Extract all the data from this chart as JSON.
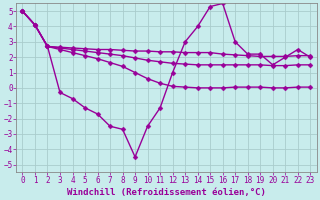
{
  "xlabel": "Windchill (Refroidissement éolien,°C)",
  "background_color": "#c8ecec",
  "line_color": "#990099",
  "grid_color": "#aacccc",
  "xlim": [
    -0.5,
    23.5
  ],
  "ylim": [
    -5.5,
    5.5
  ],
  "xticks": [
    0,
    1,
    2,
    3,
    4,
    5,
    6,
    7,
    8,
    9,
    10,
    11,
    12,
    13,
    14,
    15,
    16,
    17,
    18,
    19,
    20,
    21,
    22,
    23
  ],
  "yticks": [
    -5,
    -4,
    -3,
    -2,
    -1,
    0,
    1,
    2,
    3,
    4,
    5
  ],
  "lines": [
    {
      "x": [
        0,
        1,
        2,
        3,
        4,
        5,
        6,
        7,
        8,
        9,
        10,
        11,
        12,
        13,
        14,
        15,
        16,
        17,
        18,
        19,
        20,
        21,
        22,
        23
      ],
      "y": [
        5.0,
        4.1,
        2.7,
        2.65,
        2.6,
        2.55,
        2.5,
        2.5,
        2.45,
        2.4,
        2.4,
        2.35,
        2.35,
        2.3,
        2.3,
        2.3,
        2.2,
        2.15,
        2.1,
        2.05,
        2.05,
        2.05,
        2.1,
        2.1
      ]
    },
    {
      "x": [
        0,
        1,
        2,
        3,
        4,
        5,
        6,
        7,
        8,
        9,
        10,
        11,
        12,
        13,
        14,
        15,
        16,
        17,
        18,
        19,
        20,
        21,
        22,
        23
      ],
      "y": [
        5.0,
        4.1,
        2.7,
        2.6,
        2.5,
        2.4,
        2.3,
        2.2,
        2.1,
        1.95,
        1.8,
        1.7,
        1.6,
        1.55,
        1.5,
        1.5,
        1.5,
        1.5,
        1.5,
        1.5,
        1.45,
        1.45,
        1.5,
        1.5
      ]
    },
    {
      "x": [
        0,
        1,
        2,
        3,
        4,
        5,
        6,
        7,
        8,
        9,
        10,
        11,
        12,
        13,
        14,
        15,
        16,
        17,
        18,
        19,
        20,
        21,
        22,
        23
      ],
      "y": [
        5.0,
        4.1,
        2.7,
        2.5,
        2.3,
        2.1,
        1.9,
        1.65,
        1.4,
        1.0,
        0.6,
        0.3,
        0.1,
        0.05,
        0.0,
        0.0,
        0.0,
        0.05,
        0.05,
        0.05,
        0.0,
        0.0,
        0.05,
        0.05
      ]
    },
    {
      "x": [
        0,
        1,
        2,
        3,
        4,
        5,
        6,
        7,
        8,
        9,
        10,
        11,
        12,
        13,
        14,
        15,
        16,
        17,
        18,
        19,
        20,
        21,
        22,
        23
      ],
      "y": [
        5.0,
        4.1,
        2.7,
        -0.3,
        -0.7,
        -1.3,
        -1.7,
        -2.5,
        -2.7,
        -4.5,
        -2.5,
        -1.3,
        1.0,
        3.0,
        4.0,
        5.3,
        5.5,
        3.0,
        2.2,
        2.2,
        1.5,
        2.0,
        2.5,
        2.0
      ]
    }
  ],
  "marker": "D",
  "markersize": 2.5,
  "linewidth": 1.0,
  "xlabel_fontsize": 6.5,
  "tick_fontsize": 5.5,
  "tick_color": "#990099",
  "xlabel_color": "#990099",
  "spine_color": "#888888"
}
